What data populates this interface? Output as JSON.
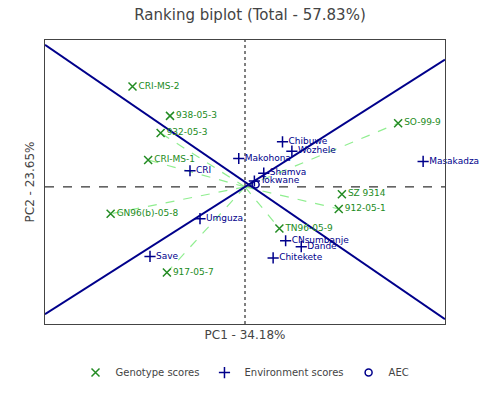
{
  "chart_data": {
    "type": "scatter",
    "title": "Ranking biplot (Total - 57.83%)",
    "xlabel": "PC1 - 34.18%",
    "ylabel": "PC2 - 23.65%",
    "xlim": [
      -3.2,
      3.2
    ],
    "ylim": [
      -2.8,
      3.0
    ],
    "tick_labels": false,
    "grid": false,
    "legend": "bottom",
    "series": [
      {
        "name": "Genotype scores",
        "color": "#228B22",
        "marker": "x",
        "labels": [
          "CRI-MS-2",
          "938-05-3",
          "932-05-3",
          "CRI-MS-1",
          "GN96(b)-05-8",
          "917-05-7",
          "TN96-05-9",
          "SZ 9314",
          "SO-99-9",
          "912-05-1"
        ],
        "x": [
          -1.8,
          -1.2,
          -1.35,
          -1.55,
          -2.15,
          -1.25,
          0.55,
          1.55,
          2.45,
          1.5
        ],
        "y": [
          2.05,
          1.45,
          1.1,
          0.55,
          -0.55,
          -1.75,
          -0.85,
          -0.15,
          1.3,
          -0.45
        ]
      },
      {
        "name": "Environment scores",
        "color": "#00008B",
        "marker": "plus",
        "labels": [
          "Makohona",
          "Chibuwe",
          "Wozhele",
          "Shamva",
          "Tokwane",
          "CRI",
          "Umguza",
          "Save",
          "CNsumbanje",
          "Dande",
          "Chitekete",
          "Masakadza"
        ],
        "x": [
          -0.1,
          0.6,
          0.75,
          0.3,
          0.15,
          -0.88,
          -0.72,
          -1.52,
          0.65,
          0.9,
          0.45,
          2.85
        ],
        "y": [
          0.58,
          0.92,
          0.73,
          0.28,
          0.12,
          0.33,
          -0.65,
          -1.42,
          -1.1,
          -1.22,
          -1.45,
          0.52
        ]
      },
      {
        "name": "AEC",
        "color": "#00008B",
        "marker": "circle-open",
        "x": [
          0.17
        ],
        "y": [
          0.05
        ]
      }
    ],
    "lines": [
      {
        "x": [
          -3.2,
          3.2
        ],
        "y": [
          2.9,
          -2.7
        ],
        "color": "#00008B",
        "line_style": "solid"
      },
      {
        "x": [
          -3.2,
          3.2
        ],
        "y": [
          -2.6,
          2.6
        ],
        "color": "#00008B",
        "line_style": "solid"
      }
    ],
    "vline": {
      "value": 0,
      "color": "#000000",
      "line_style": "dotted"
    },
    "hline": {
      "value": 0,
      "color": "#000000",
      "line_style": "dashed"
    },
    "rays": {
      "origin": [
        0,
        0
      ],
      "color": "#90EE90",
      "line_style": "dashed",
      "endpoints": [
        [
          2.45,
          1.3
        ],
        [
          1.5,
          -0.45
        ],
        [
          0.55,
          -0.85
        ],
        [
          -1.55,
          0.55
        ],
        [
          -1.35,
          1.1
        ],
        [
          -2.15,
          -0.55
        ],
        [
          -1.25,
          -1.75
        ]
      ]
    }
  }
}
